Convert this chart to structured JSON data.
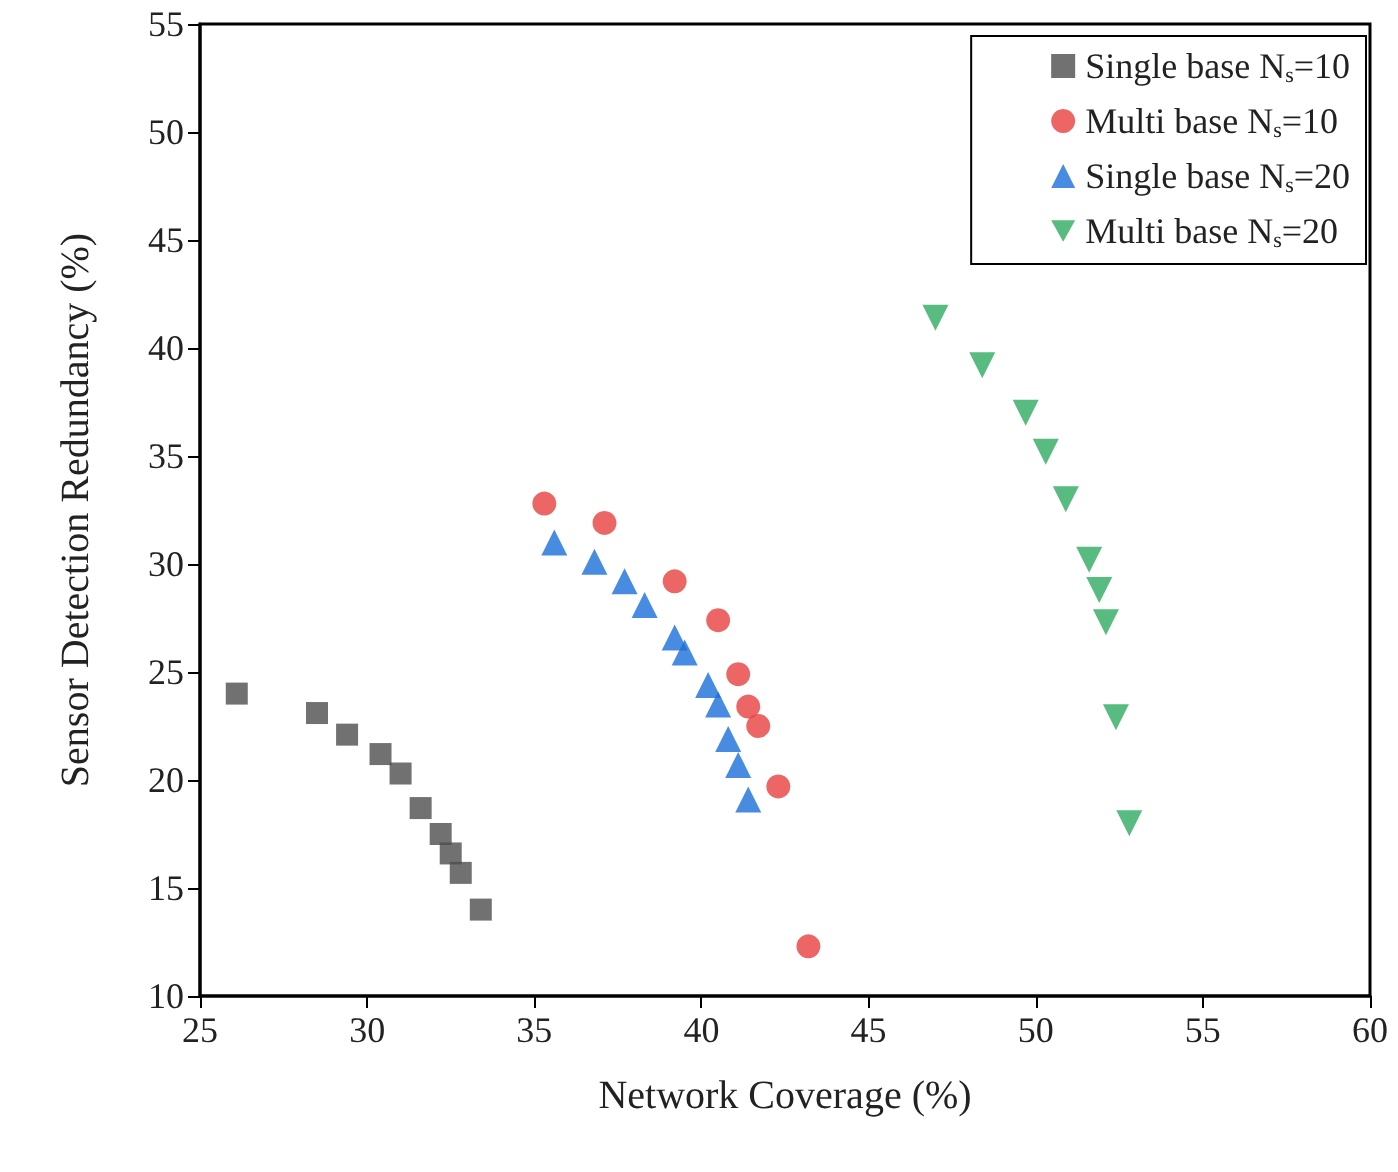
{
  "chart_data": {
    "type": "scatter",
    "xlabel": "Network Coverage (%)",
    "ylabel": "Sensor Detection Redundancy (%)",
    "xlim": [
      25,
      60
    ],
    "xticks": [
      25,
      30,
      35,
      40,
      45,
      50,
      55,
      60
    ],
    "ylim": [
      10,
      55
    ],
    "yticks": [
      10,
      15,
      20,
      25,
      30,
      35,
      40,
      45,
      50,
      55
    ],
    "grid": false,
    "legend": "top right",
    "series": [
      {
        "name": "Single base N$_{s}$=10",
        "color": "#4d4d4d",
        "marker": "square",
        "x": [
          26.1,
          28.5,
          29.4,
          30.4,
          31.0,
          31.6,
          32.2,
          32.5,
          32.8,
          33.4
        ],
        "values": [
          24.0,
          23.1,
          22.1,
          21.2,
          20.3,
          18.7,
          17.5,
          16.6,
          15.7,
          14.0
        ]
      },
      {
        "name": "Multi base N$_{s}$=10",
        "color": "#e84040",
        "marker": "circle",
        "x": [
          35.3,
          37.1,
          39.2,
          40.5,
          41.1,
          41.4,
          41.7,
          42.3,
          43.2
        ],
        "values": [
          32.8,
          31.9,
          29.2,
          27.4,
          24.9,
          23.4,
          22.5,
          19.7,
          12.3
        ]
      },
      {
        "name": "Single base N$_{s}$=20",
        "color": "#1a6fdb",
        "marker": "triangle",
        "x": [
          35.6,
          36.8,
          37.7,
          38.3,
          39.2,
          39.5,
          40.2,
          40.5,
          40.8,
          41.1,
          41.4
        ],
        "values": [
          31.0,
          30.1,
          29.2,
          28.1,
          26.6,
          25.9,
          24.4,
          23.5,
          21.9,
          20.7,
          19.1
        ]
      },
      {
        "name": "Multi base N$_{s}$=20",
        "color": "#2eaa60",
        "marker": "triangle-down",
        "x": [
          47.0,
          48.4,
          49.7,
          50.3,
          50.9,
          51.6,
          51.9,
          52.1,
          52.4,
          52.8
        ],
        "values": [
          41.4,
          39.2,
          37.0,
          35.2,
          33.0,
          30.2,
          28.8,
          27.3,
          22.9,
          18.0
        ]
      }
    ]
  }
}
